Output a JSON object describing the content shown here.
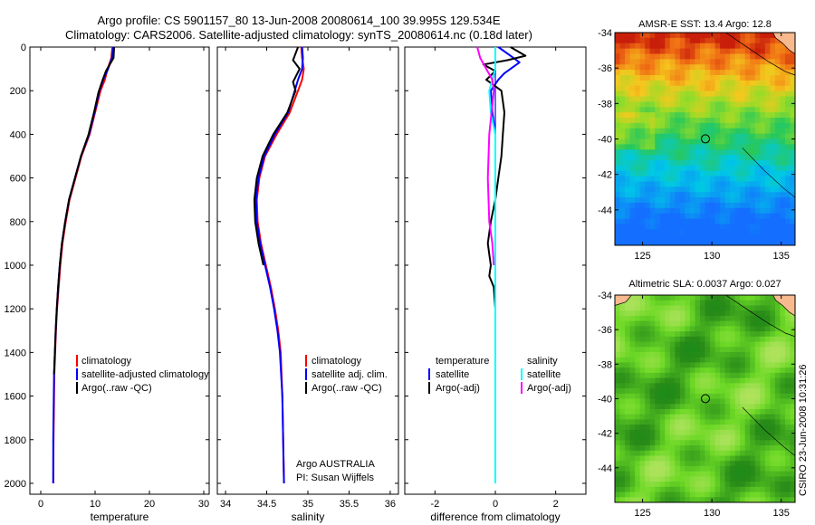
{
  "title": {
    "line1": "Argo profile: CS 5901157_80 13-Jun-2008 20080614_100 39.995S 129.534E",
    "line2": "Climatology: CARS2006. Satellite-adjusted climatology: synTS_20080614.nc (0.18d later)"
  },
  "watermark": "CSIRO 23-Jun-2008 10:31:26",
  "colors": {
    "red": "#ff0000",
    "blue": "#0000ff",
    "black": "#000000",
    "cyan": "#00ffff",
    "magenta": "#ff00ff"
  },
  "chart_data": [
    {
      "type": "line",
      "id": "temperature",
      "xlabel": "temperature",
      "xlim": [
        -2,
        31
      ],
      "ylim": [
        0,
        2050
      ],
      "xticks": [
        0,
        10,
        20,
        30
      ],
      "yticks": [
        0,
        200,
        400,
        600,
        800,
        1000,
        1200,
        1400,
        1600,
        1800,
        2000
      ],
      "legend": [
        "climatology",
        "satellite-adjusted climatology",
        "Argo(..raw -QC)"
      ],
      "series": [
        {
          "name": "climatology",
          "color": "red",
          "x": [
            13.2,
            13.0,
            12.3,
            11.8,
            11.0,
            10.0,
            9.0,
            7.5,
            6.4,
            5.3,
            4.6,
            4.0,
            3.6,
            3.3,
            3.0,
            2.8,
            2.65,
            2.5,
            2.45,
            2.35,
            2.3
          ],
          "y": [
            0,
            50,
            100,
            150,
            200,
            300,
            400,
            500,
            600,
            700,
            800,
            900,
            1000,
            1100,
            1200,
            1300,
            1400,
            1500,
            1600,
            1800,
            2000
          ]
        },
        {
          "name": "satellite-adjusted climatology",
          "color": "blue",
          "x": [
            13.3,
            13.1,
            12.4,
            11.5,
            10.8,
            9.9,
            8.9,
            7.4,
            6.3,
            5.2,
            4.5,
            3.9,
            3.5,
            3.2,
            2.95,
            2.75,
            2.6,
            2.45,
            2.4,
            2.3,
            2.3
          ],
          "y": [
            0,
            50,
            100,
            150,
            200,
            300,
            400,
            500,
            600,
            700,
            800,
            900,
            1000,
            1100,
            1200,
            1300,
            1400,
            1500,
            1600,
            1800,
            2000
          ]
        },
        {
          "name": "Argo(..raw -QC)",
          "color": "black",
          "x": [
            13.5,
            13.4,
            12.0,
            11.4,
            10.6,
            9.8,
            8.8,
            7.4,
            6.3,
            5.2,
            4.5,
            3.9,
            3.5,
            3.2,
            2.95,
            2.75,
            2.6,
            2.45
          ],
          "y": [
            0,
            50,
            110,
            150,
            210,
            300,
            400,
            500,
            600,
            700,
            800,
            900,
            1000,
            1100,
            1200,
            1300,
            1400,
            1500
          ]
        }
      ]
    },
    {
      "type": "line",
      "id": "salinity",
      "xlabel": "salinity",
      "xlim": [
        33.9,
        36.1
      ],
      "ylim": [
        0,
        2050
      ],
      "xticks": [
        34,
        34.5,
        35,
        35.5,
        36
      ],
      "xtick_labels": [
        "34",
        "34.5",
        "35",
        "35.5",
        "36"
      ],
      "legend": [
        "climatology",
        "satellite adj. clim.",
        "Argo(..raw -QC)"
      ],
      "series": [
        {
          "name": "climatology",
          "color": "red",
          "x": [
            34.92,
            34.93,
            34.95,
            34.93,
            34.88,
            34.78,
            34.62,
            34.48,
            34.41,
            34.38,
            34.39,
            34.43,
            34.49,
            34.55,
            34.6,
            34.64,
            34.67,
            34.69,
            34.71
          ],
          "y": [
            0,
            50,
            100,
            150,
            200,
            300,
            400,
            500,
            600,
            700,
            800,
            900,
            1000,
            1100,
            1200,
            1300,
            1400,
            1600,
            2000
          ]
        },
        {
          "name": "satellite adj. clim.",
          "color": "blue",
          "x": [
            34.93,
            34.94,
            34.93,
            34.88,
            34.84,
            34.76,
            34.6,
            34.47,
            34.4,
            34.37,
            34.38,
            34.42,
            34.48,
            34.54,
            34.59,
            34.63,
            34.66,
            34.69,
            34.71
          ],
          "y": [
            0,
            50,
            100,
            150,
            200,
            300,
            400,
            500,
            600,
            700,
            800,
            900,
            1000,
            1100,
            1200,
            1300,
            1400,
            1600,
            2000
          ]
        },
        {
          "name": "Argo(..raw -QC)",
          "color": "black",
          "x": [
            34.88,
            34.82,
            34.9,
            34.82,
            34.85,
            34.75,
            34.58,
            34.45,
            34.38,
            34.35,
            34.36,
            34.4,
            34.46
          ],
          "y": [
            0,
            60,
            100,
            160,
            200,
            300,
            400,
            500,
            600,
            700,
            800,
            900,
            1000
          ]
        }
      ],
      "annotation": [
        "Argo AUSTRALIA",
        "PI: Susan Wijffels"
      ]
    },
    {
      "type": "line",
      "id": "difference",
      "xlabel": "difference from climatology",
      "xlim": [
        -3,
        3
      ],
      "ylim": [
        0,
        2050
      ],
      "xticks": [
        -2,
        0,
        2
      ],
      "legend_temperature_title": "temperature",
      "legend_salinity_title": "salinity",
      "legend_temperature": [
        "satellite",
        "Argo(-adj)"
      ],
      "legend_salinity": [
        "satellite",
        "Argo(-adj)"
      ],
      "series": [
        {
          "name": "temperature satellite",
          "color": "blue",
          "x": [
            0.1,
            0.5,
            0.8,
            0.3,
            0.1,
            -0.15,
            -0.1,
            0.0,
            0.0,
            0.0,
            0.0,
            0.0,
            0.0,
            0.0
          ],
          "y": [
            0,
            40,
            70,
            120,
            150,
            200,
            300,
            400,
            600,
            800,
            1000,
            1200,
            1600,
            2000
          ]
        },
        {
          "name": "temperature Argo(-adj)",
          "color": "black",
          "x": [
            0.5,
            1.0,
            0.4,
            -0.4,
            0.0,
            -0.3,
            0.2,
            0.3,
            0.25,
            0.2,
            0.1,
            0.0,
            -0.15,
            -0.25,
            -0.2,
            -0.15,
            -0.2,
            -0.05,
            0.0,
            0.0,
            0.0
          ],
          "y": [
            0,
            40,
            60,
            80,
            110,
            150,
            200,
            300,
            400,
            500,
            600,
            700,
            800,
            900,
            950,
            1000,
            1050,
            1100,
            1200,
            1400,
            2000
          ]
        },
        {
          "name": "salinity satellite",
          "color": "cyan",
          "x": [
            0.0,
            0.0,
            -0.1,
            -0.2,
            -0.15,
            0.0,
            0.0,
            0.0,
            0.0,
            0.0
          ],
          "y": [
            0,
            100,
            150,
            200,
            300,
            400,
            800,
            1200,
            1600,
            2000
          ]
        },
        {
          "name": "salinity Argo(-adj)",
          "color": "magenta",
          "x": [
            -0.6,
            -0.5,
            -0.3,
            -0.1,
            -0.05,
            -0.2,
            -0.25,
            -0.2,
            -0.1,
            -0.05
          ],
          "y": [
            0,
            50,
            100,
            150,
            200,
            400,
            600,
            800,
            900,
            1000
          ]
        }
      ]
    },
    {
      "type": "heatmap",
      "id": "sst_map",
      "title": "AMSR-E SST: 13.4  Argo: 12.8",
      "xlim": [
        123,
        136
      ],
      "ylim": [
        -46,
        -34
      ],
      "xticks": [
        125,
        130,
        135
      ],
      "yticks": [
        -34,
        -36,
        -38,
        -40,
        -42,
        -44
      ],
      "marker": {
        "lon": 129.534,
        "lat": -39.995
      }
    },
    {
      "type": "heatmap",
      "id": "sla_map",
      "title": "Altimetric SLA: 0.0037  Argo: 0.027",
      "xlim": [
        123,
        136
      ],
      "ylim": [
        -46,
        -34
      ],
      "xticks": [
        125,
        130,
        135
      ],
      "yticks": [
        -34,
        -36,
        -38,
        -40,
        -42,
        -44
      ],
      "marker": {
        "lon": 129.534,
        "lat": -39.995
      }
    }
  ]
}
